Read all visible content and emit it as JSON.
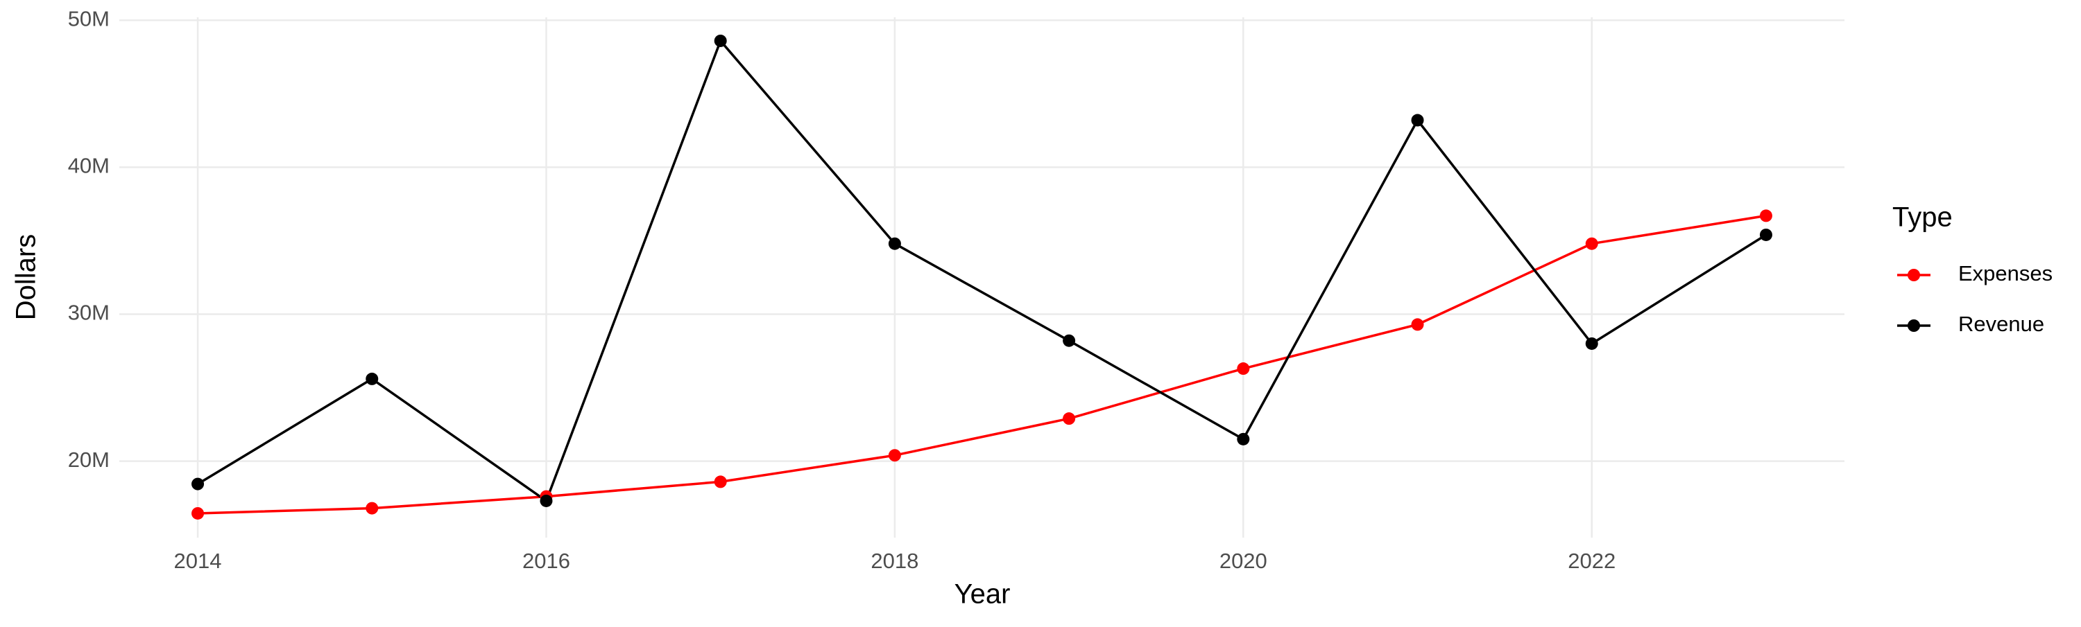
{
  "chart_data": {
    "type": "line",
    "x_label": "Year",
    "y_label": "Dollars",
    "legend_title": "Type",
    "legend_position": "right",
    "grid": true,
    "x": [
      2014,
      2015,
      2016,
      2017,
      2018,
      2019,
      2020,
      2021,
      2022,
      2023
    ],
    "series": [
      {
        "name": "Expenses",
        "color": "#ff0000",
        "values": [
          16450000,
          16800000,
          17600000,
          18600000,
          20400000,
          22900000,
          26300000,
          29300000,
          34800000,
          36700000
        ]
      },
      {
        "name": "Revenue",
        "color": "#000000",
        "values": [
          18450000,
          25600000,
          17300000,
          48600000,
          34800000,
          28200000,
          21500000,
          43200000,
          28000000,
          35400000
        ]
      }
    ],
    "xlim": [
      2013.55,
      2023.45
    ],
    "ylim": [
      14800000,
      50200000
    ],
    "xticks": [
      2014,
      2016,
      2018,
      2020,
      2022
    ],
    "yticks": [
      {
        "value": 20000000,
        "label": "20M"
      },
      {
        "value": 30000000,
        "label": "30M"
      },
      {
        "value": 40000000,
        "label": "40M"
      },
      {
        "value": 50000000,
        "label": "50M"
      }
    ]
  }
}
